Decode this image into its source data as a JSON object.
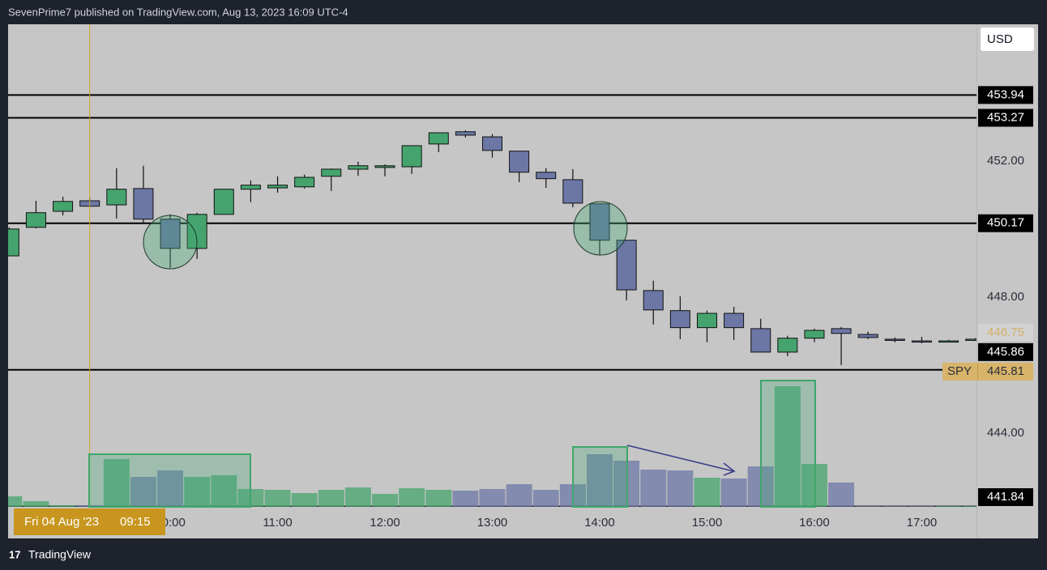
{
  "header": {
    "text": "SevenPrime7 published on TradingView.com, Aug 13, 2023 16:09 UTC-4"
  },
  "footer": {
    "brand": "TradingView"
  },
  "currency_button": "USD",
  "chart_data": {
    "type": "candlestick",
    "symbol": "SPY",
    "x": [
      8.5,
      8.75,
      9.0,
      9.25,
      9.5,
      9.75,
      10.0,
      10.25,
      10.5,
      10.75,
      11.0,
      11.25,
      11.5,
      11.75,
      12.0,
      12.25,
      12.5,
      12.75,
      13.0,
      13.25,
      13.5,
      13.75,
      14.0,
      14.25,
      14.5,
      14.75,
      15.0,
      15.25,
      15.5,
      15.75,
      16.0,
      16.25,
      16.5,
      16.75,
      17.0,
      17.25,
      17.5
    ],
    "open": [
      449.21,
      450.05,
      450.52,
      450.83,
      450.71,
      451.19,
      450.29,
      449.43,
      450.43,
      451.17,
      451.21,
      451.24,
      451.55,
      451.76,
      451.81,
      451.83,
      452.5,
      452.86,
      452.71,
      452.29,
      451.67,
      451.45,
      450.74,
      449.67,
      448.19,
      447.6,
      447.1,
      447.52,
      447.07,
      446.38,
      446.79,
      447.07,
      446.9,
      446.76,
      446.71,
      446.71,
      446.76
    ],
    "high": [
      450.05,
      450.83,
      450.95,
      450.93,
      451.79,
      451.86,
      450.43,
      450.48,
      451.17,
      451.43,
      451.55,
      451.6,
      451.78,
      451.98,
      451.9,
      452.45,
      452.83,
      452.9,
      452.79,
      452.29,
      451.79,
      451.76,
      450.74,
      449.67,
      448.48,
      448.02,
      447.6,
      447.71,
      447.36,
      446.86,
      447.07,
      447.12,
      446.98,
      446.81,
      446.83,
      446.74,
      446.79
    ],
    "low": [
      449.2,
      450.02,
      450.4,
      450.64,
      450.31,
      450.17,
      448.86,
      449.12,
      450.43,
      450.79,
      451.07,
      451.19,
      451.12,
      451.57,
      451.55,
      451.62,
      452.26,
      452.69,
      452.1,
      451.38,
      451.21,
      450.64,
      449.24,
      447.9,
      447.19,
      446.76,
      446.67,
      446.74,
      446.38,
      446.26,
      446.67,
      446.0,
      446.76,
      446.67,
      446.64,
      446.69,
      446.74
    ],
    "close": [
      450.0,
      450.48,
      450.81,
      450.67,
      451.17,
      450.29,
      449.43,
      450.43,
      451.17,
      451.29,
      451.29,
      451.52,
      451.76,
      451.86,
      451.86,
      452.45,
      452.83,
      452.76,
      452.31,
      451.67,
      451.48,
      450.76,
      449.67,
      448.21,
      447.62,
      447.1,
      447.52,
      447.1,
      446.38,
      446.79,
      447.02,
      446.93,
      446.81,
      446.74,
      446.69,
      446.71,
      446.76
    ],
    "volume": [
      13,
      7,
      2,
      2,
      59,
      37,
      45,
      37,
      39,
      22,
      21,
      17,
      21,
      24,
      16,
      23,
      21,
      20,
      22,
      28,
      21,
      28,
      65,
      57,
      46,
      45,
      36,
      35,
      50,
      149,
      53,
      30,
      1,
      1,
      1,
      1,
      1
    ],
    "up_color": "#45a46e",
    "down_color": "#6c77a6",
    "xlim": [
      8.49,
      17.51
    ],
    "xticks": [
      {
        "value": 10,
        "label": "10:00"
      },
      {
        "value": 11,
        "label": "11:00"
      },
      {
        "value": 12,
        "label": "12:00"
      },
      {
        "value": 13,
        "label": "13:00"
      },
      {
        "value": 14,
        "label": "14:00"
      },
      {
        "value": 15,
        "label": "15:00"
      },
      {
        "value": 16,
        "label": "16:00"
      },
      {
        "value": 17,
        "label": "17:00"
      }
    ],
    "ylim": [
      441.83,
      456.02
    ],
    "yticks": [
      {
        "value": 452,
        "label": "452.00"
      },
      {
        "value": 448,
        "label": "448.00"
      },
      {
        "value": 444,
        "label": "444.00"
      }
    ],
    "levels": [
      453.94,
      453.27,
      450.17,
      445.86,
      441.84
    ],
    "last_price": 446.75,
    "symbol_price": 445.81,
    "crosshair": {
      "x": 9.25,
      "date_label": "Fri 04 Aug '23",
      "time_label": "09:15"
    }
  }
}
